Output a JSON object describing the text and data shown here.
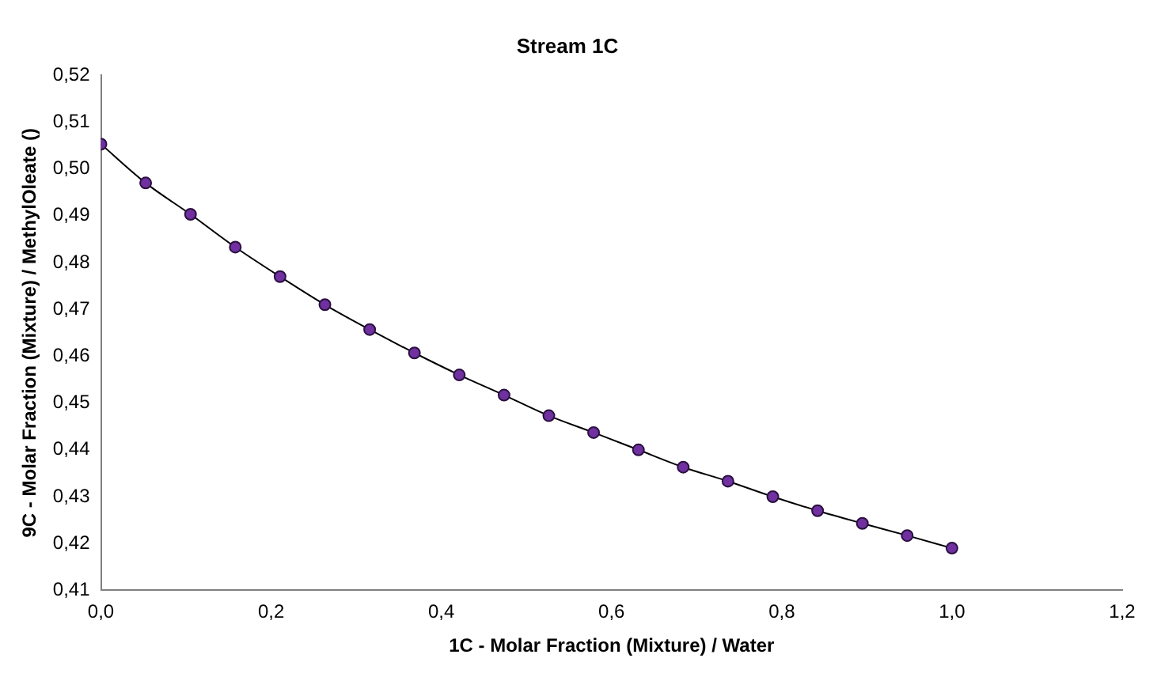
{
  "chart_data": {
    "type": "line",
    "title": "Stream 1C",
    "xlabel": "1C - Molar Fraction (Mixture) / Water",
    "ylabel": "9C - Molar Fraction (Mixture) / MethylOleate ()",
    "x": [
      0,
      0.0526,
      0.1053,
      0.1579,
      0.2105,
      0.2632,
      0.3158,
      0.3684,
      0.4211,
      0.4737,
      0.5263,
      0.5789,
      0.6316,
      0.6842,
      0.7368,
      0.7895,
      0.8421,
      0.8947,
      0.9474,
      1.0
    ],
    "series": [
      {
        "color": "#7030a0",
        "values": [
          0.5053,
          0.497,
          0.4903,
          0.4833,
          0.477,
          0.471,
          0.4657,
          0.4607,
          0.456,
          0.4517,
          0.4473,
          0.4437,
          0.44,
          0.4363,
          0.4333,
          0.43,
          0.427,
          0.4243,
          0.4217,
          0.419
        ]
      }
    ],
    "xlim": [
      0,
      1.2
    ],
    "xticks": [
      {
        "value": 0,
        "label": "0,0"
      },
      {
        "value": 0.2,
        "label": "0,2"
      },
      {
        "value": 0.4,
        "label": "0,4"
      },
      {
        "value": 0.6,
        "label": "0,6"
      },
      {
        "value": 0.8,
        "label": "0,8"
      },
      {
        "value": 1.0,
        "label": "1,0"
      },
      {
        "value": 1.2,
        "label": "1,2"
      }
    ],
    "ylim": [
      0.41,
      0.52
    ],
    "yticks": [
      {
        "value": 0.41,
        "label": "0,41"
      },
      {
        "value": 0.42,
        "label": "0,42"
      },
      {
        "value": 0.43,
        "label": "0,43"
      },
      {
        "value": 0.44,
        "label": "0,44"
      },
      {
        "value": 0.45,
        "label": "0,45"
      },
      {
        "value": 0.46,
        "label": "0,46"
      },
      {
        "value": 0.47,
        "label": "0,47"
      },
      {
        "value": 0.48,
        "label": "0,48"
      },
      {
        "value": 0.49,
        "label": "0,49"
      },
      {
        "value": 0.5,
        "label": "0,50"
      },
      {
        "value": 0.51,
        "label": "0,51"
      },
      {
        "value": 0.52,
        "label": "0,52"
      }
    ],
    "grid": false,
    "legend": false,
    "marker": "circle",
    "line_style": "solid"
  }
}
